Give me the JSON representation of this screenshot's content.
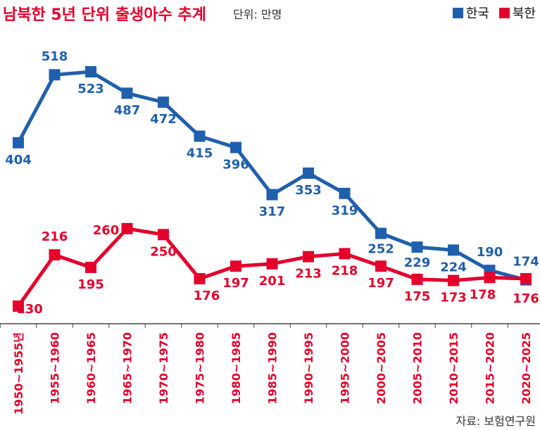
{
  "title": "남북한 5년 단위 출생아수 추계",
  "unit_label": "단위: 만명",
  "source": "자료: 보험연구원",
  "colors": {
    "south": "#1f5fad",
    "north": "#e4002b",
    "axis": "#444444",
    "title": "#e4002b"
  },
  "chart_data": {
    "type": "line",
    "title": "남북한 5년 단위 출생아수 추계",
    "xlabel": "",
    "ylabel": "",
    "unit": "만명",
    "ylim": [
      100,
      560
    ],
    "grid": false,
    "legend_position": "top-right",
    "categories": [
      "1950~1955년",
      "1955~1960",
      "1960~1965",
      "1965~1970",
      "1970~1975",
      "1975~1980",
      "1980~1985",
      "1985~1990",
      "1990~1995",
      "1995~2000",
      "2000~2005",
      "2005~2010",
      "2010~2015",
      "2015~2020",
      "2020~2025"
    ],
    "series": [
      {
        "name": "한국",
        "color": "#1f5fad",
        "values": [
          404,
          518,
          523,
          487,
          472,
          415,
          396,
          317,
          353,
          319,
          252,
          229,
          224,
          190,
          174
        ]
      },
      {
        "name": "북한",
        "color": "#e4002b",
        "values": [
          130,
          216,
          195,
          260,
          250,
          176,
          197,
          201,
          213,
          218,
          197,
          175,
          173,
          178,
          176
        ]
      }
    ]
  }
}
